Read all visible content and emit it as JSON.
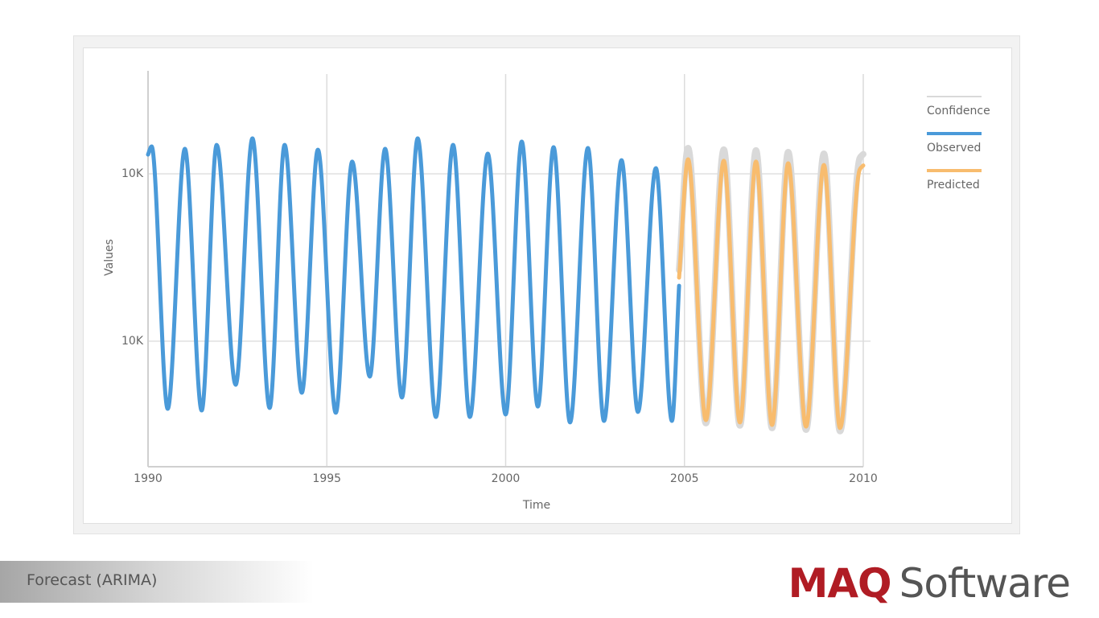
{
  "chart_data": {
    "type": "line",
    "x_label": "Time",
    "y_label": "Values",
    "x": [
      1990.0,
      1990.1,
      1990.55,
      1991.03,
      1991.5,
      1991.92,
      1992.45,
      1992.92,
      1993.4,
      1993.82,
      1994.3,
      1994.75,
      1995.25,
      1995.71,
      1996.2,
      1996.63,
      1997.1,
      1997.54,
      1998.05,
      1998.53,
      1999.0,
      1999.5,
      2000.0,
      2000.45,
      2000.9,
      2001.34,
      2001.8,
      2002.3,
      2002.75,
      2003.24,
      2003.7,
      2004.2,
      2004.65,
      2004.85,
      2005.1,
      2005.6,
      2006.1,
      2006.55,
      2007.0,
      2007.45,
      2007.9,
      2008.4,
      2008.9,
      2009.35,
      2009.9,
      2010.0
    ],
    "series": [
      {
        "name": "Confidence",
        "color": "#d9d9d9",
        "values": [
          null,
          null,
          null,
          null,
          null,
          null,
          null,
          null,
          null,
          null,
          null,
          null,
          null,
          null,
          null,
          null,
          null,
          null,
          null,
          null,
          null,
          null,
          null,
          null,
          null,
          null,
          null,
          null,
          null,
          null,
          null,
          null,
          null,
          9940,
          10523,
          9208,
          10516,
          9197,
          10512,
          9185,
          10504,
          9177,
          10496,
          9170,
          10474,
          10494
        ]
      },
      {
        "name": "Observed",
        "color": "#4a9ad9",
        "values": [
          10492,
          10531,
          9277,
          10519,
          9269,
          10538,
          9392,
          10569,
          9281,
          10538,
          9354,
          10515,
          9258,
          10458,
          9431,
          10519,
          9331,
          10569,
          9238,
          10538,
          9238,
          10496,
          9250,
          10554,
          9288,
          10527,
          9212,
          10523,
          9219,
          10465,
          9262,
          10427,
          9219,
          9865,
          null,
          null,
          null,
          null,
          null,
          null,
          null,
          null,
          null,
          null,
          null,
          null
        ]
      },
      {
        "name": "Predicted",
        "color": "#f8bc6e",
        "values": [
          null,
          null,
          null,
          null,
          null,
          null,
          null,
          null,
          null,
          null,
          null,
          null,
          null,
          null,
          null,
          null,
          null,
          null,
          null,
          null,
          null,
          null,
          null,
          null,
          null,
          null,
          null,
          null,
          null,
          null,
          null,
          null,
          null,
          9904,
          10469,
          9223,
          10462,
          9212,
          10458,
          9200,
          10450,
          9192,
          10442,
          9185,
          10420,
          10440
        ]
      }
    ],
    "xlim": [
      1990,
      2010
    ],
    "xticks": [
      1990,
      1995,
      2000,
      2005,
      2010
    ],
    "ylim": [
      9000,
      10900
    ],
    "yticks": [
      {
        "value": 9600,
        "label": "10K"
      },
      {
        "value": 10400,
        "label": "10K"
      }
    ],
    "grid": true,
    "legend": "right"
  },
  "footer": {
    "label": "Forecast (ARIMA)"
  },
  "brand": {
    "mark": "MAQ",
    "name": "Software"
  }
}
